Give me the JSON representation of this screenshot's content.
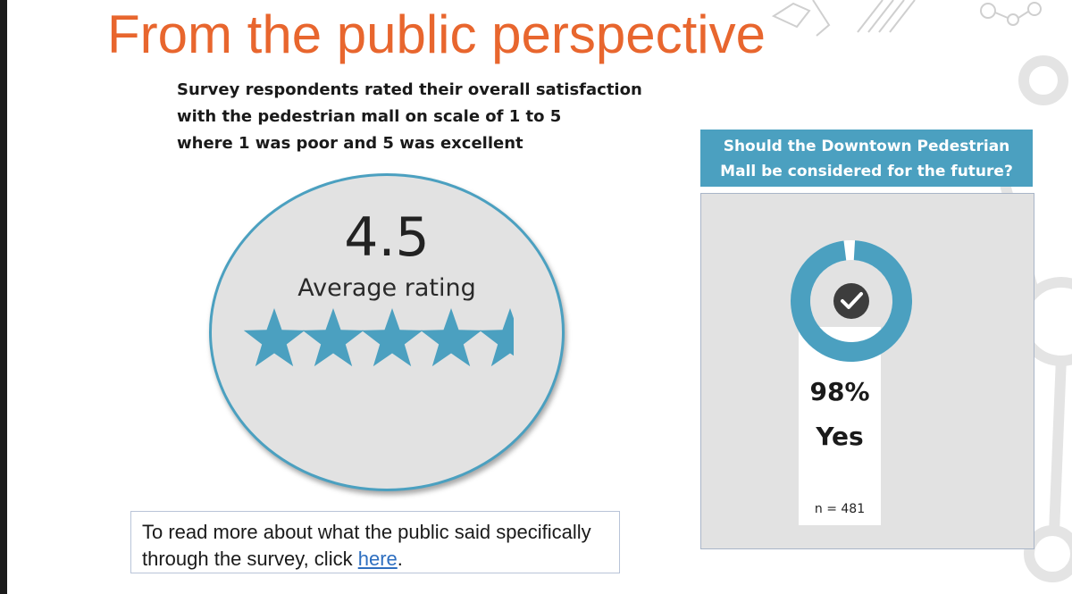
{
  "slide": {
    "title": "From the public perspective",
    "subtitle_lines": [
      "Survey respondents rated their overall satisfaction",
      "with the pedestrian mall on scale of 1 to 5",
      "where 1 was poor and 5 was excellent"
    ]
  },
  "rating": {
    "value": "4.5",
    "label": "Average rating",
    "stars_filled": 4.5,
    "stars_total": 5,
    "color": "#4ba0c0"
  },
  "future_question": {
    "header_lines": [
      "Should the Downtown Pedestrian",
      "Mall be considered for the future?"
    ],
    "yes_fraction": 0.98,
    "percent": "98%",
    "answer": "Yes",
    "sample": "n = 481",
    "icon": "check-circle-icon"
  },
  "note": {
    "text": "To read more about what the public said specifically through the survey, click",
    "link_text": "here",
    "end": "."
  },
  "colors": {
    "title": "#e8662e",
    "accent": "#4ba0c0",
    "link": "#2e6fc0"
  }
}
